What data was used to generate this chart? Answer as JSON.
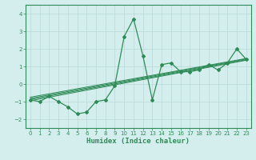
{
  "title": "",
  "xlabel": "Humidex (Indice chaleur)",
  "x": [
    0,
    1,
    2,
    3,
    4,
    5,
    6,
    7,
    8,
    9,
    10,
    11,
    12,
    13,
    14,
    15,
    16,
    17,
    18,
    19,
    20,
    21,
    22,
    23
  ],
  "y_main": [
    -0.9,
    -1.0,
    -0.7,
    -1.0,
    -1.3,
    -1.7,
    -1.6,
    -1.0,
    -0.9,
    -0.1,
    2.7,
    3.7,
    1.6,
    -0.9,
    1.1,
    1.2,
    0.7,
    0.7,
    0.8,
    1.1,
    0.8,
    1.2,
    2.0,
    1.4
  ],
  "trend_lines": [
    [
      -0.95,
      1.35
    ],
    [
      -0.88,
      1.38
    ],
    [
      -0.82,
      1.42
    ],
    [
      -0.75,
      1.45
    ]
  ],
  "line_color": "#2e8b57",
  "bg_color": "#d4eeee",
  "grid_color": "#b8d8d8",
  "ylim": [
    -2.5,
    4.5
  ],
  "xlim": [
    -0.5,
    23.5
  ],
  "yticks": [
    -2,
    -1,
    0,
    1,
    2,
    3,
    4
  ],
  "xticks": [
    0,
    1,
    2,
    3,
    4,
    5,
    6,
    7,
    8,
    9,
    10,
    11,
    12,
    13,
    14,
    15,
    16,
    17,
    18,
    19,
    20,
    21,
    22,
    23
  ],
  "tick_fontsize": 5.0,
  "xlabel_fontsize": 6.5
}
